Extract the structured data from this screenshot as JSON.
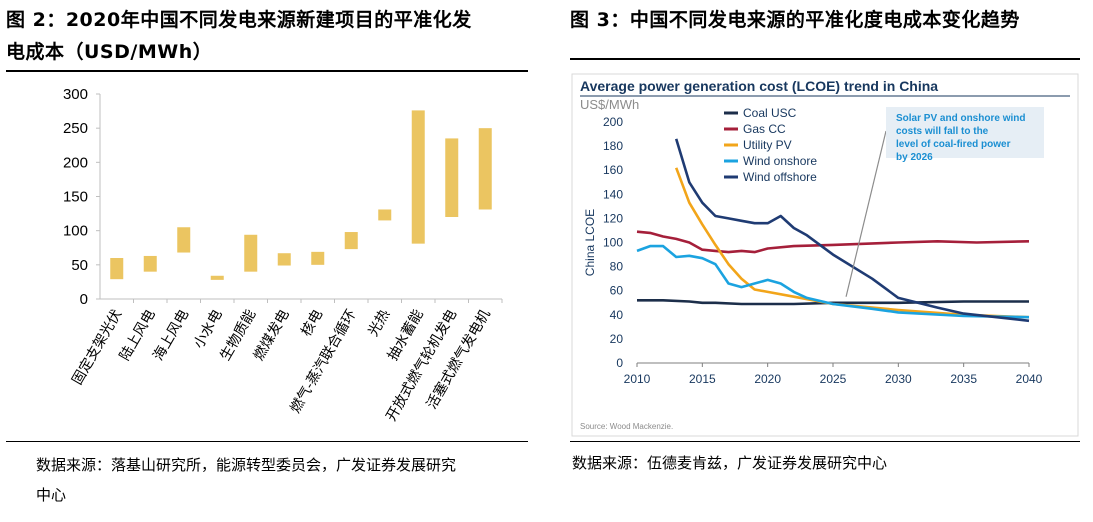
{
  "left": {
    "fig_title_line1": "图 2：2020年中国不同发电来源新建项目的平准化发",
    "fig_title_line2": "电成本（USD/MWh）",
    "source_line1": "数据来源：落基山研究所，能源转型委员会，广发证券发展研究",
    "source_line2": "中心"
  },
  "right": {
    "fig_title": "图 3：中国不同发电来源的平准化度电成本变化趋势",
    "source": "数据来源：伍德麦肯兹，广发证券发展研究中心"
  },
  "colors": {
    "bar": "#EBC561",
    "title_blue": "#17375E",
    "coal": "#1C2E4A",
    "gas": "#A51F3A",
    "pv": "#F2A51A",
    "wind_on": "#1BA3E0",
    "wind_off": "#1F3B73",
    "annot_bg": "#E6EEF5",
    "annot_text": "#1B8FD2"
  },
  "chart_data": [
    {
      "type": "bar",
      "subtype": "floating-range",
      "categories": [
        "固定支架光伏",
        "陆上风电",
        "海上风电",
        "小水电",
        "生物质能",
        "燃煤发电",
        "核电",
        "燃气-蒸汽联合循环",
        "光热",
        "抽水蓄能",
        "开放式燃气轮机发电",
        "活塞式燃气发电机"
      ],
      "ranges": [
        [
          29,
          60
        ],
        [
          40,
          63
        ],
        [
          68,
          105
        ],
        [
          28,
          34
        ],
        [
          40,
          94
        ],
        [
          49,
          67
        ],
        [
          50,
          69
        ],
        [
          73,
          98
        ],
        [
          115,
          131
        ],
        [
          81,
          276
        ],
        [
          120,
          235
        ],
        [
          131,
          250
        ]
      ],
      "yticks": [
        0,
        50,
        100,
        150,
        200,
        250,
        300
      ],
      "ylim": [
        0,
        300
      ]
    },
    {
      "type": "line",
      "title": "Average power generation cost (LCOE) trend in China",
      "unit": "US$/MWh",
      "ylabel": "China LCOE",
      "xlim": [
        2010,
        2040
      ],
      "ylim": [
        0,
        200
      ],
      "xticks": [
        2010,
        2015,
        2020,
        2025,
        2030,
        2035,
        2040
      ],
      "yticks": [
        0,
        20,
        40,
        60,
        80,
        100,
        120,
        140,
        160,
        180,
        200
      ],
      "legend_position": "top-left",
      "series": [
        {
          "name": "Coal USC",
          "color_key": "coal",
          "x": [
            2010,
            2012,
            2014,
            2015,
            2016,
            2018,
            2020,
            2022,
            2025,
            2030,
            2035,
            2040
          ],
          "y": [
            52,
            52,
            51,
            50,
            50,
            49,
            49,
            49,
            50,
            50,
            51,
            51
          ]
        },
        {
          "name": "Gas CC",
          "color_key": "gas",
          "x": [
            2010,
            2011,
            2012,
            2013,
            2014,
            2015,
            2016,
            2017,
            2018,
            2019,
            2020,
            2022,
            2025,
            2030,
            2033,
            2036,
            2040
          ],
          "y": [
            109,
            108,
            105,
            103,
            100,
            94,
            93,
            92,
            93,
            92,
            95,
            97,
            98,
            100,
            101,
            100,
            101
          ]
        },
        {
          "name": "Utility PV",
          "color_key": "pv",
          "x": [
            2013,
            2014,
            2015,
            2016,
            2017,
            2018,
            2019,
            2020,
            2022,
            2025,
            2028,
            2030,
            2035,
            2040
          ],
          "y": [
            162,
            133,
            115,
            98,
            82,
            70,
            61,
            59,
            55,
            49,
            46,
            44,
            40,
            38
          ]
        },
        {
          "name": "Wind onshore",
          "color_key": "wind_on",
          "x": [
            2010,
            2011,
            2012,
            2013,
            2014,
            2015,
            2016,
            2017,
            2018,
            2019,
            2020,
            2021,
            2022,
            2023,
            2025,
            2028,
            2030,
            2035,
            2040
          ],
          "y": [
            93,
            97,
            97,
            88,
            89,
            87,
            82,
            66,
            63,
            66,
            69,
            66,
            59,
            54,
            49,
            45,
            42,
            39,
            38
          ]
        },
        {
          "name": "Wind offshore",
          "color_key": "wind_off",
          "x": [
            2013,
            2014,
            2015,
            2016,
            2017,
            2018,
            2019,
            2020,
            2021,
            2022,
            2023,
            2025,
            2028,
            2030,
            2033,
            2035,
            2040
          ],
          "y": [
            186,
            150,
            133,
            122,
            120,
            118,
            116,
            116,
            122,
            112,
            106,
            90,
            70,
            54,
            46,
            41,
            35
          ]
        }
      ],
      "annotation": "Solar PV and onshore wind costs will fall to the level of coal-fired power by 2026",
      "source_note": "Source: Wood Mackenzie."
    }
  ]
}
